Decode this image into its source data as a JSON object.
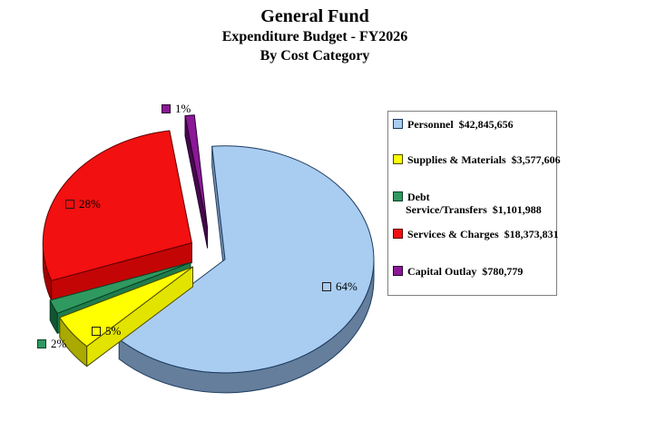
{
  "title": {
    "line1": "General Fund",
    "line2": "Expenditure Budget - FY2026",
    "line3": "By Cost Category"
  },
  "chart_data": {
    "type": "pie",
    "variant": "3d-exploded",
    "title": "General Fund Expenditure Budget - FY2026 By Cost Category",
    "legend_position": "right",
    "background": "#ffffff",
    "slices": [
      {
        "label": "Personnel",
        "amount": "$42,845,656",
        "value": 42845656,
        "pct": 64,
        "pct_label": "64%",
        "color": "#A9CDF1",
        "side": "#647E9C",
        "face": "#8099B8",
        "edge": "#1C3A5E"
      },
      {
        "label": "Supplies & Materials",
        "amount": "$3,577,606",
        "value": 3577606,
        "pct": 5,
        "pct_label": "5%",
        "color": "#FFFF00",
        "side": "#A9A900",
        "face": "#E3E300",
        "edge": "#4A4A00"
      },
      {
        "label": "Debt Service/Transfers",
        "amount": "$1,101,988",
        "value": 1101988,
        "pct": 2,
        "pct_label": "2%",
        "color": "#2F9960",
        "side": "#135434",
        "face": "#1E7C4C",
        "edge": "#093D22"
      },
      {
        "label": "Services & Charges",
        "amount": "$18,373,831",
        "value": 18373831,
        "pct": 28,
        "pct_label": "28%",
        "color": "#F21010",
        "side": "#A50000",
        "face": "#C40505",
        "edge": "#5E0000"
      },
      {
        "label": "Capital Outlay",
        "amount": "$780,779",
        "value": 780779,
        "pct": 1,
        "pct_label": "1%",
        "color": "#8B1897",
        "side": "#47094E",
        "face": "#47094E",
        "edge": "#26032B"
      }
    ]
  }
}
